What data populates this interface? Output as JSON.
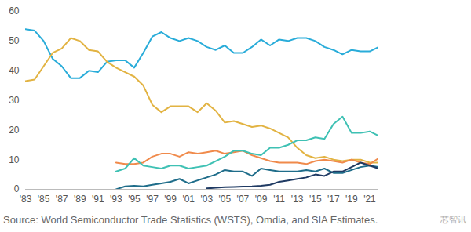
{
  "chart_data": {
    "type": "line",
    "caption": "Source: World Semiconductor Trade Statistics (WSTS), Omdia, and SIA Estimates.",
    "annotation": "芯智讯",
    "x": [
      1983,
      1984,
      1985,
      1986,
      1987,
      1988,
      1989,
      1990,
      1991,
      1992,
      1993,
      1994,
      1995,
      1996,
      1997,
      1998,
      1999,
      2000,
      2001,
      2002,
      2003,
      2004,
      2005,
      2006,
      2007,
      2008,
      2009,
      2010,
      2011,
      2012,
      2013,
      2014,
      2015,
      2016,
      2017,
      2018,
      2019,
      2020,
      2021,
      2022
    ],
    "series": [
      {
        "color": "#29acd9",
        "values": [
          54,
          53.5,
          50,
          44,
          41.5,
          37.5,
          37.5,
          40,
          39.5,
          43,
          43.5,
          43.5,
          41,
          46,
          51.5,
          53,
          51,
          50,
          51,
          50,
          48,
          47,
          48.5,
          46,
          46,
          48,
          50.5,
          48.5,
          50.5,
          50,
          51,
          51,
          50,
          48,
          47,
          45.5,
          47,
          46.5,
          46.5,
          48
        ]
      },
      {
        "color": "#e2b342",
        "values": [
          36.5,
          37,
          41.5,
          46,
          47.5,
          51,
          50,
          47,
          46.5,
          43,
          41,
          39.5,
          38,
          35,
          28.5,
          26,
          28,
          28,
          28,
          26,
          29,
          26.5,
          22.5,
          23,
          22,
          21,
          21.5,
          20.5,
          19,
          17.5,
          14,
          11.5,
          10.5,
          11,
          10,
          9.5,
          10,
          10,
          9,
          9
        ]
      },
      {
        "color": "#f08a4b",
        "values": [
          null,
          null,
          null,
          null,
          null,
          null,
          null,
          null,
          null,
          null,
          9,
          8.5,
          8.5,
          9,
          11,
          12,
          12,
          11,
          12.5,
          12,
          12.5,
          13,
          12,
          12.5,
          13,
          11.5,
          10.5,
          9.5,
          9,
          9,
          9,
          8.5,
          9.5,
          10,
          9.5,
          9,
          10,
          9,
          8.5,
          10.5
        ]
      },
      {
        "color": "#3fc1b4",
        "values": [
          null,
          null,
          null,
          null,
          null,
          null,
          null,
          null,
          null,
          null,
          6,
          7,
          10.5,
          8,
          7.5,
          7,
          8,
          8,
          7,
          7.5,
          8,
          9.5,
          11,
          13,
          13,
          12,
          11.5,
          14,
          14,
          15,
          16.5,
          16.5,
          17.5,
          17,
          22,
          24.5,
          19,
          19,
          19.5,
          18
        ]
      },
      {
        "color": "#1f6d8a",
        "values": [
          null,
          null,
          null,
          null,
          null,
          null,
          null,
          null,
          null,
          null,
          0,
          1,
          1.2,
          1,
          1.5,
          2,
          2.5,
          3.5,
          2,
          3,
          4,
          5,
          6.5,
          6,
          6,
          4.5,
          7,
          6.5,
          6,
          6,
          6,
          6.5,
          6,
          7,
          5.5,
          5.5,
          6.5,
          7.5,
          8,
          7.5
        ]
      },
      {
        "color": "#1f3a63",
        "values": [
          null,
          null,
          null,
          null,
          null,
          null,
          null,
          null,
          null,
          null,
          null,
          null,
          null,
          null,
          null,
          null,
          null,
          null,
          null,
          null,
          0.3,
          0.5,
          0.7,
          0.8,
          0.9,
          1,
          1.2,
          1.5,
          2.5,
          3,
          3.5,
          4,
          5,
          4.5,
          6,
          6,
          7.5,
          9,
          8,
          7
        ]
      }
    ],
    "xlim": [
      1983,
      2022
    ],
    "xticks": [
      {
        "value": 1983,
        "label": "'83"
      },
      {
        "value": 1985,
        "label": "'85"
      },
      {
        "value": 1987,
        "label": "'87"
      },
      {
        "value": 1989,
        "label": "'89"
      },
      {
        "value": 1991,
        "label": "'91"
      },
      {
        "value": 1993,
        "label": "'93"
      },
      {
        "value": 1995,
        "label": "'95"
      },
      {
        "value": 1997,
        "label": "'97"
      },
      {
        "value": 1999,
        "label": "'99"
      },
      {
        "value": 2001,
        "label": "'01"
      },
      {
        "value": 2003,
        "label": "'03"
      },
      {
        "value": 2005,
        "label": "'05"
      },
      {
        "value": 2007,
        "label": "'07"
      },
      {
        "value": 2009,
        "label": "'09"
      },
      {
        "value": 2011,
        "label": "'11"
      },
      {
        "value": 2013,
        "label": "'13"
      },
      {
        "value": 2015,
        "label": "'15"
      },
      {
        "value": 2017,
        "label": "'17"
      },
      {
        "value": 2019,
        "label": "'19"
      },
      {
        "value": 2021,
        "label": "'21"
      }
    ],
    "ylim": [
      0,
      60
    ],
    "yticks": [
      0,
      10,
      20,
      30,
      40,
      50,
      60
    ],
    "grid": false
  }
}
